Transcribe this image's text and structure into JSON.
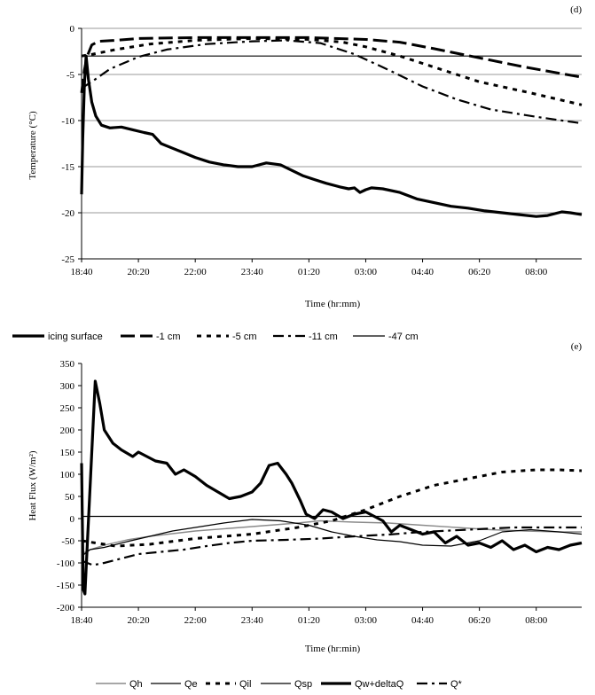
{
  "chart_data": [
    {
      "type": "line",
      "panel_label": "(d)",
      "ylabel": "Temperature (°C)",
      "xlabel": "Time (hr:mm)",
      "ylim": [
        -25,
        0
      ],
      "yticks": [
        0,
        -5,
        -10,
        -15,
        -20,
        -25
      ],
      "ytick_labels": [
        "0",
        "-5",
        "-10",
        "-15",
        "-20",
        "-25"
      ],
      "xlim": [
        0,
        880
      ],
      "xticks": [
        0,
        100,
        200,
        300,
        400,
        500,
        600,
        700,
        800
      ],
      "xtick_labels": [
        "18:40",
        "20:20",
        "22:00",
        "23:40",
        "01:20",
        "03:00",
        "04:40",
        "06:20",
        "08:00"
      ],
      "grid": "horizontal",
      "legend_position": "bottom",
      "series": [
        {
          "name": "icing surface",
          "style": "thick-solid",
          "points": [
            [
              0,
              -18
            ],
            [
              2,
              -12
            ],
            [
              5,
              -6
            ],
            [
              8,
              -3
            ],
            [
              12,
              -5.5
            ],
            [
              18,
              -8
            ],
            [
              25,
              -9.5
            ],
            [
              35,
              -10.5
            ],
            [
              50,
              -10.8
            ],
            [
              70,
              -10.7
            ],
            [
              90,
              -11
            ],
            [
              110,
              -11.3
            ],
            [
              125,
              -11.5
            ],
            [
              140,
              -12.5
            ],
            [
              160,
              -13
            ],
            [
              180,
              -13.5
            ],
            [
              200,
              -14
            ],
            [
              225,
              -14.5
            ],
            [
              250,
              -14.8
            ],
            [
              275,
              -15
            ],
            [
              300,
              -15
            ],
            [
              325,
              -14.6
            ],
            [
              350,
              -14.8
            ],
            [
              370,
              -15.4
            ],
            [
              390,
              -16
            ],
            [
              410,
              -16.4
            ],
            [
              430,
              -16.8
            ],
            [
              455,
              -17.2
            ],
            [
              470,
              -17.4
            ],
            [
              480,
              -17.3
            ],
            [
              490,
              -17.8
            ],
            [
              500,
              -17.5
            ],
            [
              510,
              -17.3
            ],
            [
              530,
              -17.4
            ],
            [
              560,
              -17.8
            ],
            [
              590,
              -18.5
            ],
            [
              620,
              -18.9
            ],
            [
              650,
              -19.3
            ],
            [
              680,
              -19.5
            ],
            [
              710,
              -19.8
            ],
            [
              740,
              -20
            ],
            [
              770,
              -20.2
            ],
            [
              800,
              -20.4
            ],
            [
              820,
              -20.3
            ],
            [
              845,
              -19.9
            ],
            [
              860,
              -20
            ],
            [
              880,
              -20.2
            ]
          ]
        },
        {
          "name": "-1 cm",
          "style": "long-dash",
          "points": [
            [
              0,
              -7
            ],
            [
              5,
              -4.5
            ],
            [
              10,
              -3
            ],
            [
              18,
              -1.8
            ],
            [
              30,
              -1.4
            ],
            [
              60,
              -1.3
            ],
            [
              100,
              -1.1
            ],
            [
              200,
              -1
            ],
            [
              300,
              -1
            ],
            [
              400,
              -1
            ],
            [
              500,
              -1.2
            ],
            [
              560,
              -1.5
            ],
            [
              620,
              -2.2
            ],
            [
              700,
              -3.2
            ],
            [
              780,
              -4.2
            ],
            [
              880,
              -5.3
            ]
          ]
        },
        {
          "name": "-5 cm",
          "style": "short-dash",
          "points": [
            [
              0,
              -3
            ],
            [
              20,
              -2.8
            ],
            [
              60,
              -2.3
            ],
            [
              120,
              -1.7
            ],
            [
              200,
              -1.3
            ],
            [
              300,
              -1.1
            ],
            [
              400,
              -1.2
            ],
            [
              460,
              -1.5
            ],
            [
              500,
              -2
            ],
            [
              560,
              -3
            ],
            [
              620,
              -4.2
            ],
            [
              700,
              -5.8
            ],
            [
              790,
              -7
            ],
            [
              880,
              -8.3
            ]
          ]
        },
        {
          "name": "-11 cm",
          "style": "dash-dot",
          "points": [
            [
              0,
              -6.5
            ],
            [
              20,
              -5.7
            ],
            [
              50,
              -4.4
            ],
            [
              100,
              -3.1
            ],
            [
              150,
              -2.3
            ],
            [
              220,
              -1.7
            ],
            [
              300,
              -1.4
            ],
            [
              360,
              -1.3
            ],
            [
              420,
              -1.6
            ],
            [
              480,
              -2.8
            ],
            [
              540,
              -4.5
            ],
            [
              600,
              -6.3
            ],
            [
              660,
              -7.7
            ],
            [
              720,
              -8.8
            ],
            [
              800,
              -9.6
            ],
            [
              880,
              -10.3
            ]
          ]
        },
        {
          "name": "-47 cm",
          "style": "thin-solid",
          "points": [
            [
              0,
              -3
            ],
            [
              880,
              -3
            ]
          ]
        }
      ]
    },
    {
      "type": "line",
      "panel_label": "(e)",
      "ylabel": "Heat Flux (W/m²)",
      "xlabel": "Time (hr:min)",
      "ylim": [
        -200,
        350
      ],
      "yticks": [
        350,
        300,
        250,
        200,
        150,
        100,
        50,
        0,
        -50,
        -100,
        -150,
        -200
      ],
      "ytick_labels": [
        "350",
        "300",
        "250",
        "200",
        "150",
        "100",
        "50",
        "0",
        "-50",
        "-100",
        "-150",
        "-200"
      ],
      "xlim": [
        0,
        880
      ],
      "xticks": [
        0,
        100,
        200,
        300,
        400,
        500,
        600,
        700,
        800
      ],
      "xtick_labels": [
        "18:40",
        "20:20",
        "22:00",
        "23:40",
        "01:20",
        "03:00",
        "04:40",
        "06:20",
        "08:00"
      ],
      "grid": "none",
      "legend_position": "bottom",
      "series": [
        {
          "name": "Qh",
          "style": "medium-gray",
          "points": [
            [
              0,
              -80
            ],
            [
              15,
              -70
            ],
            [
              40,
              -60
            ],
            [
              80,
              -48
            ],
            [
              120,
              -40
            ],
            [
              200,
              -28
            ],
            [
              300,
              -18
            ],
            [
              380,
              -10
            ],
            [
              420,
              -5
            ],
            [
              480,
              -8
            ],
            [
              540,
              -10
            ],
            [
              600,
              -15
            ],
            [
              660,
              -20
            ],
            [
              720,
              -25
            ],
            [
              780,
              -28
            ],
            [
              840,
              -30
            ],
            [
              880,
              -30
            ]
          ]
        },
        {
          "name": "Qe",
          "style": "thin-solid",
          "points": [
            [
              0,
              -85
            ],
            [
              15,
              -70
            ],
            [
              40,
              -65
            ],
            [
              80,
              -52
            ],
            [
              120,
              -40
            ],
            [
              160,
              -28
            ],
            [
              200,
              -20
            ],
            [
              250,
              -10
            ],
            [
              300,
              -2
            ],
            [
              350,
              -5
            ],
            [
              400,
              -15
            ],
            [
              440,
              -30
            ],
            [
              480,
              -40
            ],
            [
              520,
              -48
            ],
            [
              560,
              -52
            ],
            [
              600,
              -60
            ],
            [
              650,
              -62
            ],
            [
              700,
              -50
            ],
            [
              740,
              -30
            ],
            [
              790,
              -25
            ],
            [
              840,
              -30
            ],
            [
              880,
              -35
            ]
          ]
        },
        {
          "name": "Qil",
          "style": "short-dash",
          "points": [
            [
              0,
              -50
            ],
            [
              60,
              -62
            ],
            [
              120,
              -58
            ],
            [
              200,
              -45
            ],
            [
              300,
              -35
            ],
            [
              380,
              -20
            ],
            [
              440,
              -5
            ],
            [
              500,
              20
            ],
            [
              560,
              50
            ],
            [
              620,
              75
            ],
            [
              680,
              90
            ],
            [
              740,
              105
            ],
            [
              800,
              110
            ],
            [
              840,
              110
            ],
            [
              880,
              108
            ]
          ]
        },
        {
          "name": "Qsp",
          "style": "thin-solid",
          "points": [
            [
              0,
              5
            ],
            [
              880,
              5
            ]
          ]
        },
        {
          "name": "Qw+deltaQ",
          "style": "thick-solid",
          "points": [
            [
              0,
              125
            ],
            [
              3,
              -160
            ],
            [
              6,
              -170
            ],
            [
              10,
              -60
            ],
            [
              16,
              100
            ],
            [
              24,
              310
            ],
            [
              32,
              260
            ],
            [
              40,
              200
            ],
            [
              55,
              170
            ],
            [
              70,
              155
            ],
            [
              90,
              140
            ],
            [
              100,
              150
            ],
            [
              115,
              140
            ],
            [
              130,
              130
            ],
            [
              150,
              125
            ],
            [
              165,
              100
            ],
            [
              180,
              110
            ],
            [
              200,
              95
            ],
            [
              220,
              75
            ],
            [
              240,
              60
            ],
            [
              260,
              45
            ],
            [
              280,
              50
            ],
            [
              300,
              60
            ],
            [
              315,
              80
            ],
            [
              330,
              120
            ],
            [
              345,
              125
            ],
            [
              360,
              100
            ],
            [
              370,
              80
            ],
            [
              385,
              40
            ],
            [
              395,
              10
            ],
            [
              410,
              0
            ],
            [
              425,
              20
            ],
            [
              440,
              15
            ],
            [
              460,
              0
            ],
            [
              480,
              10
            ],
            [
              500,
              15
            ],
            [
              515,
              5
            ],
            [
              530,
              -5
            ],
            [
              545,
              -30
            ],
            [
              560,
              -15
            ],
            [
              580,
              -25
            ],
            [
              600,
              -35
            ],
            [
              620,
              -30
            ],
            [
              640,
              -55
            ],
            [
              660,
              -40
            ],
            [
              680,
              -60
            ],
            [
              700,
              -55
            ],
            [
              720,
              -65
            ],
            [
              740,
              -50
            ],
            [
              760,
              -70
            ],
            [
              780,
              -60
            ],
            [
              800,
              -75
            ],
            [
              820,
              -65
            ],
            [
              840,
              -70
            ],
            [
              860,
              -60
            ],
            [
              880,
              -55
            ]
          ]
        },
        {
          "name": "Q*",
          "style": "dash-dot",
          "points": [
            [
              0,
              -95
            ],
            [
              20,
              -105
            ],
            [
              40,
              -100
            ],
            [
              70,
              -90
            ],
            [
              100,
              -80
            ],
            [
              140,
              -75
            ],
            [
              180,
              -70
            ],
            [
              220,
              -62
            ],
            [
              260,
              -55
            ],
            [
              300,
              -50
            ],
            [
              360,
              -48
            ],
            [
              420,
              -45
            ],
            [
              480,
              -40
            ],
            [
              540,
              -36
            ],
            [
              600,
              -30
            ],
            [
              680,
              -25
            ],
            [
              760,
              -20
            ],
            [
              880,
              -20
            ]
          ]
        }
      ]
    }
  ]
}
